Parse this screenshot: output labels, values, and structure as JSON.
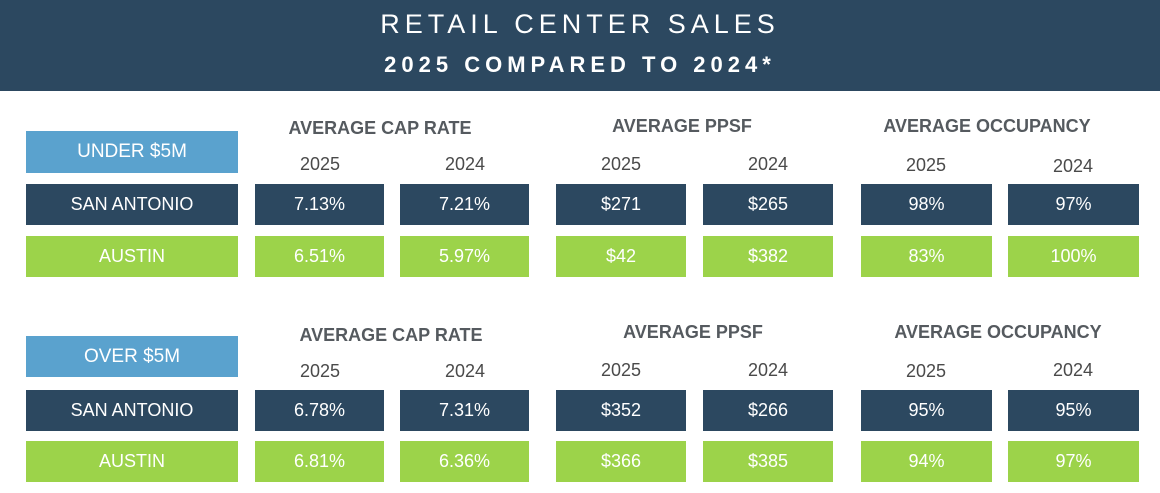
{
  "header": {
    "title": "RETAIL CENTER SALES",
    "subtitle": "2025 COMPARED TO 2024*"
  },
  "chart_data": {
    "type": "table",
    "sections": [
      {
        "tier": "UNDER $5M",
        "metrics": [
          {
            "title": "AVERAGE CAP RATE",
            "years": [
              "2025",
              "2024"
            ]
          },
          {
            "title": "AVERAGE PPSF",
            "years": [
              "2025",
              "2024"
            ]
          },
          {
            "title": "AVERAGE OCCUPANCY",
            "years": [
              "2025",
              "2024"
            ]
          }
        ],
        "rows": [
          {
            "market": "SAN ANTONIO",
            "values": [
              "7.13%",
              "7.21%",
              "$271",
              "$265",
              "98%",
              "97%"
            ]
          },
          {
            "market": "AUSTIN",
            "values": [
              "6.51%",
              "5.97%",
              "$42",
              "$382",
              "83%",
              "100%"
            ]
          }
        ]
      },
      {
        "tier": "OVER $5M",
        "metrics": [
          {
            "title": "AVERAGE CAP RATE",
            "years": [
              "2025",
              "2024"
            ]
          },
          {
            "title": "AVERAGE PPSF",
            "years": [
              "2025",
              "2024"
            ]
          },
          {
            "title": "AVERAGE OCCUPANCY",
            "years": [
              "2025",
              "2024"
            ]
          }
        ],
        "rows": [
          {
            "market": "SAN ANTONIO",
            "values": [
              "6.78%",
              "7.31%",
              "$352",
              "$266",
              "95%",
              "95%"
            ]
          },
          {
            "market": "AUSTIN",
            "values": [
              "6.81%",
              "6.36%",
              "$366",
              "$385",
              "94%",
              "97%"
            ]
          }
        ]
      }
    ]
  },
  "colors": {
    "navy": "#2c4860",
    "green": "#9cd34a",
    "tier_blue": "#5aa2ce"
  }
}
